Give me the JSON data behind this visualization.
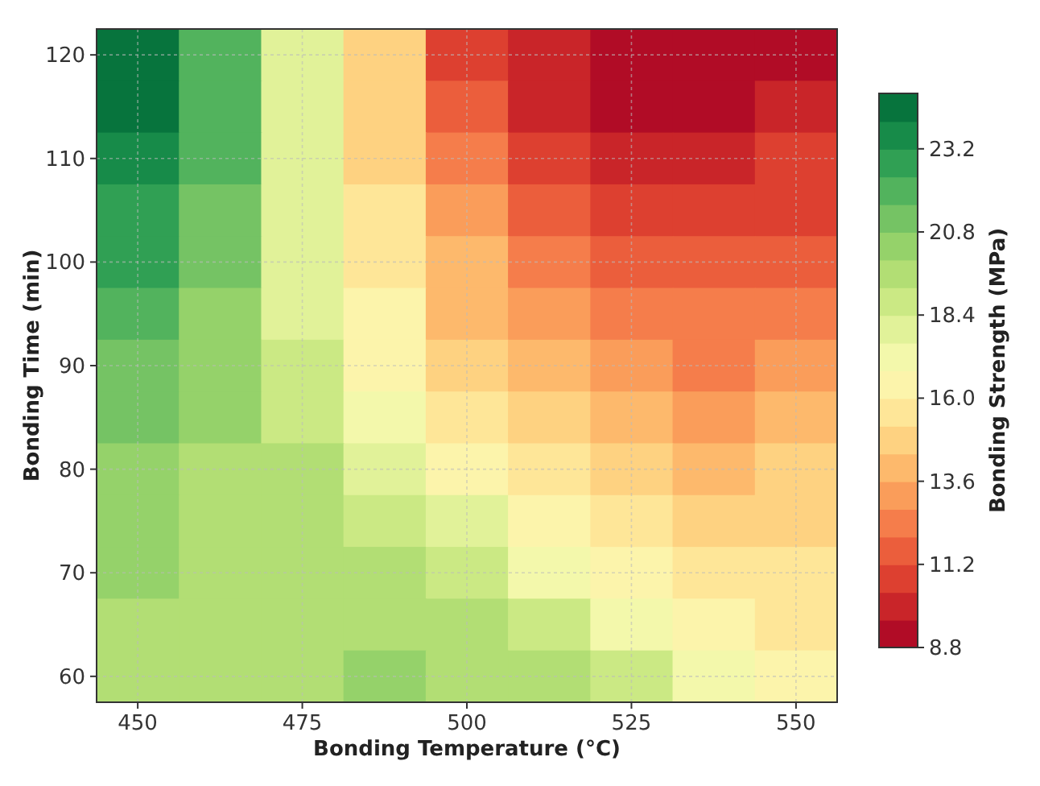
{
  "chart_data": {
    "type": "heatmap",
    "xlabel": "Bonding Temperature (°C)",
    "ylabel": "Bonding Time (min)",
    "clabel": "Bonding Strength (MPa)",
    "categories": [
      "450",
      null,
      "475",
      null,
      "500",
      null,
      "525",
      null,
      "550"
    ],
    "y_categories": [
      "120",
      null,
      "110",
      null,
      "100",
      null,
      "90",
      null,
      "80",
      null,
      "70",
      null,
      "60"
    ],
    "cells": [
      [
        24.6,
        22.3,
        18.1,
        14.5,
        11.1,
        9.8,
        9.2,
        9.2,
        9.5
      ],
      [
        24.3,
        22.0,
        18.0,
        14.7,
        11.6,
        10.1,
        9.6,
        9.6,
        9.9
      ],
      [
        23.8,
        21.7,
        17.9,
        15.0,
        12.2,
        10.6,
        10.1,
        10.1,
        10.4
      ],
      [
        23.1,
        21.3,
        17.8,
        15.3,
        12.9,
        11.2,
        10.7,
        10.7,
        10.9
      ],
      [
        22.4,
        21.0,
        17.8,
        15.7,
        13.6,
        12.0,
        11.3,
        11.3,
        11.5
      ],
      [
        21.9,
        20.7,
        18.0,
        16.1,
        14.3,
        12.8,
        12.0,
        12.0,
        12.2
      ],
      [
        21.4,
        20.3,
        18.5,
        16.6,
        15.0,
        13.6,
        12.8,
        12.7,
        13.0
      ],
      [
        21.0,
        20.1,
        19.0,
        17.2,
        15.8,
        14.5,
        13.6,
        13.5,
        13.7
      ],
      [
        20.6,
        19.9,
        19.3,
        18.0,
        16.6,
        15.4,
        14.5,
        14.2,
        14.5
      ],
      [
        20.3,
        19.8,
        19.5,
        18.8,
        17.6,
        16.4,
        15.4,
        15.0,
        15.1
      ],
      [
        20.0,
        19.7,
        19.6,
        19.4,
        18.6,
        17.4,
        16.3,
        15.6,
        15.5
      ],
      [
        19.8,
        19.7,
        19.8,
        19.8,
        19.3,
        18.5,
        17.4,
        16.3,
        15.8
      ],
      [
        19.7,
        19.7,
        19.9,
        20.1,
        19.6,
        19.4,
        18.4,
        17.3,
        16.0
      ]
    ],
    "clim": [
      8.8,
      24.8
    ],
    "cticks": [
      8.8,
      11.2,
      13.6,
      {
        "value": 16,
        "label": "16.0"
      },
      18.4,
      20.8,
      23.2
    ],
    "grid": true
  }
}
